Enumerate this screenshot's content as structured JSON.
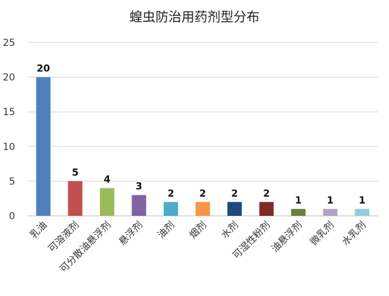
{
  "chart_data": {
    "type": "bar",
    "title": "蝗虫防治用药剂型分布",
    "xlabel": "",
    "ylabel": "",
    "ylim": [
      0,
      25
    ],
    "yticks": [
      0,
      5,
      10,
      15,
      20,
      25
    ],
    "grid": true,
    "legend": "none",
    "categories": [
      "乳油",
      "可溶液剂",
      "可分散油悬浮剂",
      "悬浮剂",
      "油剂",
      "烟剂",
      "水剂",
      "可湿性粉剂",
      "油悬浮剂",
      "微乳剂",
      "水乳剂"
    ],
    "values": [
      20,
      5,
      4,
      3,
      2,
      2,
      2,
      2,
      1,
      1,
      1
    ],
    "colors": [
      "#4f81bd",
      "#c0504d",
      "#9bbb59",
      "#8064a2",
      "#4bacc6",
      "#f79646",
      "#1f497d",
      "#7f2a25",
      "#6e7f3a",
      "#b2a2c7",
      "#93cddd"
    ]
  }
}
